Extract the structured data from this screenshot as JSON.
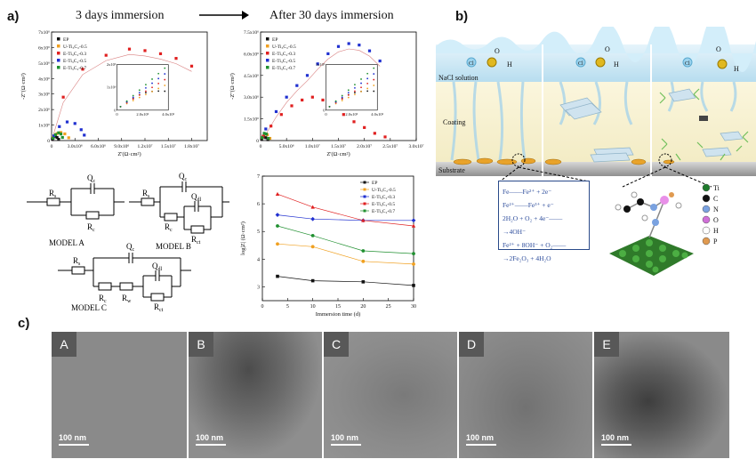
{
  "panel_a": {
    "letter": "a)",
    "header_left": "3 days immersion",
    "header_right": "After 30  days immersion"
  },
  "panel_b": {
    "letter": "b)",
    "labels": {
      "solution": "NaCl solution",
      "coating": "Coating",
      "substrate": "Substrate",
      "o2": "O",
      "cl": "Cl",
      "h2o": "H"
    },
    "equations": [
      "Fe——Fe²⁺ + 2e⁻",
      "Fe²⁺——Fe³⁺ + e⁻",
      "2H₂O + O₂ + 4e⁻——→4OH⁻",
      "Fe²⁺ + 8OH⁻ + O₂——→2Fe₂O₃ + 4H₂O"
    ],
    "atom_legend": [
      {
        "symbol": "Ti",
        "color": "#1e7a2c"
      },
      {
        "symbol": "C",
        "color": "#111111"
      },
      {
        "symbol": "N",
        "color": "#7aa2e0"
      },
      {
        "symbol": "O",
        "color": "#d070d8"
      },
      {
        "symbol": "H",
        "color": "#ffffff"
      },
      {
        "symbol": "P",
        "color": "#e09a50"
      }
    ]
  },
  "panel_c": {
    "letter": "c)",
    "images": [
      {
        "label": "A",
        "scale": "100 nm"
      },
      {
        "label": "B",
        "scale": "100 nm"
      },
      {
        "label": "C",
        "scale": "100 nm"
      },
      {
        "label": "D",
        "scale": "100 nm"
      },
      {
        "label": "E",
        "scale": "100 nm"
      }
    ]
  },
  "circuits": {
    "model_a": {
      "name": "MODEL  A",
      "r_s": "R",
      "q_c": "Q",
      "r_c": "R"
    },
    "model_b": {
      "name": "MODEL  B",
      "r_s": "R",
      "q_c": "Q",
      "r_c": "R",
      "q_dl": "Q",
      "r_ct": "R"
    },
    "model_c": {
      "name": "MODEL  C",
      "r_s": "R",
      "q_c": "Q",
      "r_c": "R",
      "r_w": "R",
      "q_dl": "Q",
      "r_ct": "R"
    },
    "subs": {
      "s": "s",
      "c": "c",
      "dl": "dl",
      "ct": "ct",
      "w": "w"
    }
  },
  "chart_data": [
    {
      "type": "scatter",
      "title": "",
      "xlabel": "Z'(Ω·cm²)",
      "ylabel": "-Z''(Ω·cm²)",
      "xlim": [
        0,
        20000000
      ],
      "ylim": [
        0,
        7000000
      ],
      "x_ticks": [
        "0",
        "3.0x10⁶",
        "6.0x10⁶",
        "9.0x10⁶",
        "1.2x10⁷",
        "1.5x10⁷",
        "1.8x10⁷"
      ],
      "x_tick_values": [
        0,
        3000000,
        6000000,
        9000000,
        12000000,
        15000000,
        18000000
      ],
      "y_ticks": [
        "0",
        "1x10⁶",
        "2x10⁶",
        "3x10⁶",
        "4x10⁶",
        "5x10⁶",
        "6x10⁶",
        "7x10⁶"
      ],
      "y_tick_values": [
        0,
        1000000,
        2000000,
        3000000,
        4000000,
        5000000,
        6000000,
        7000000
      ],
      "legend": "top-left",
      "series": [
        {
          "name": "EP",
          "color": "#111111",
          "x": [
            100000,
            300000,
            500000,
            700000,
            900000
          ],
          "y": [
            100000,
            250000,
            280000,
            200000,
            80000
          ]
        },
        {
          "name": "U-Ti₃C₂-0.5",
          "color": "#f0a020",
          "x": [
            200000,
            700000,
            1200000,
            1700000,
            2200000
          ],
          "y": [
            200000,
            450000,
            520000,
            430000,
            180000
          ]
        },
        {
          "name": "E-Ti₃C₂-0.3",
          "color": "#e02020",
          "x": [
            1500000,
            4000000,
            7000000,
            10000000,
            12000000,
            14000000,
            16000000,
            18000000
          ],
          "y": [
            2800000,
            4600000,
            5500000,
            5900000,
            5800000,
            5600000,
            5300000,
            4800000
          ]
        },
        {
          "name": "E-Ti₃C₂-0.5",
          "color": "#2030d0",
          "x": [
            300000,
            1000000,
            2000000,
            3000000,
            3800000,
            4200000
          ],
          "y": [
            300000,
            900000,
            1200000,
            1100000,
            700000,
            350000
          ]
        },
        {
          "name": "E-Ti₃C₂-0.7",
          "color": "#209030",
          "x": [
            200000,
            500000,
            900000,
            1200000,
            1400000
          ],
          "y": [
            150000,
            380000,
            500000,
            420000,
            200000
          ]
        }
      ],
      "inset": {
        "x_ticks": [
          "0",
          "2.0x10⁶",
          "4.0x10⁶"
        ],
        "y_ticks": [
          "0",
          "1x10⁶",
          "2x10⁶"
        ]
      }
    },
    {
      "type": "scatter",
      "title": "",
      "xlabel": "Z'(Ω·cm²)",
      "ylabel": "-Z''(Ω·cm²)",
      "xlim": [
        0,
        30000000
      ],
      "ylim": [
        0,
        7500000
      ],
      "x_ticks": [
        "0",
        "5.0x10⁶",
        "1.0x10⁷",
        "1.5x10⁷",
        "2.0x10⁷",
        "2.5x10⁷",
        "3.0x10⁷"
      ],
      "x_tick_values": [
        0,
        5000000,
        10000000,
        15000000,
        20000000,
        25000000,
        30000000
      ],
      "y_ticks": [
        "0",
        "1.5x10⁶",
        "3.0x10⁶",
        "4.5x10⁶",
        "6.0x10⁶",
        "7.5x10⁶"
      ],
      "y_tick_values": [
        0,
        1500000,
        3000000,
        4500000,
        6000000,
        7500000
      ],
      "legend": "top-left",
      "series": [
        {
          "name": "EP",
          "color": "#111111",
          "x": [
            200000,
            600000,
            1000000,
            1400000
          ],
          "y": [
            100000,
            250000,
            200000,
            60000
          ]
        },
        {
          "name": "U-Ti₃C₂-0.5",
          "color": "#f0a020",
          "x": [
            300000,
            800000,
            1300000,
            1800000
          ],
          "y": [
            200000,
            450000,
            400000,
            150000
          ]
        },
        {
          "name": "E-Ti₃C₂-0.3",
          "color": "#e02020",
          "x": [
            500000,
            2000000,
            4000000,
            6000000,
            8000000,
            10000000,
            12000000,
            14000000,
            16000000,
            18000000,
            20000000,
            22000000,
            24000000
          ],
          "y": [
            300000,
            1000000,
            1800000,
            2400000,
            2800000,
            3000000,
            2800000,
            2300000,
            1800000,
            1300000,
            900000,
            500000,
            250000
          ]
        },
        {
          "name": "E-Ti₃C₂-0.5",
          "color": "#2030d0",
          "x": [
            1000000,
            3000000,
            5000000,
            7000000,
            9000000,
            11000000,
            13000000,
            15000000,
            17000000,
            19000000,
            21000000,
            23000000
          ],
          "y": [
            800000,
            2000000,
            3000000,
            3800000,
            4500000,
            5300000,
            6000000,
            6500000,
            6700000,
            6600000,
            6200000,
            5500000
          ]
        },
        {
          "name": "E-Ti₃C₂-0.7",
          "color": "#209030",
          "x": [
            300000,
            700000,
            1100000,
            1500000
          ],
          "y": [
            200000,
            500000,
            450000,
            150000
          ]
        }
      ],
      "inset": {
        "x_ticks": [
          "0",
          "2.0x10⁶",
          "4.0x10⁶"
        ],
        "y_ticks": [
          "0",
          "1x10⁶"
        ]
      }
    },
    {
      "type": "line",
      "title": "",
      "xlabel": "Immersion time (d)",
      "ylabel": "log|Z| (Ω·cm²)",
      "xlim": [
        0,
        30
      ],
      "ylim": [
        2.5,
        7
      ],
      "x_ticks": [
        "0",
        "5",
        "10",
        "15",
        "20",
        "25",
        "30"
      ],
      "y_ticks": [
        "3",
        "4",
        "5",
        "6",
        "7"
      ],
      "legend": "top-right",
      "x": [
        3,
        10,
        20,
        30
      ],
      "series": [
        {
          "name": "EP",
          "color": "#111111",
          "marker": "square",
          "values": [
            3.38,
            3.22,
            3.18,
            3.05
          ]
        },
        {
          "name": "U-Ti₃C₂-0.5",
          "color": "#f0a020",
          "marker": "circle",
          "values": [
            4.55,
            4.45,
            3.92,
            3.82
          ]
        },
        {
          "name": "E-Ti₃C₂-0.3",
          "color": "#2030d0",
          "marker": "diamond",
          "values": [
            5.6,
            5.45,
            5.4,
            5.4
          ]
        },
        {
          "name": "E-Ti₃C₂-0.5",
          "color": "#e02020",
          "marker": "triangle",
          "values": [
            6.35,
            5.88,
            5.4,
            5.2
          ]
        },
        {
          "name": "E-Ti₃C₂-0.7",
          "color": "#209030",
          "marker": "circle",
          "values": [
            5.2,
            4.85,
            4.3,
            4.2
          ]
        }
      ]
    }
  ]
}
